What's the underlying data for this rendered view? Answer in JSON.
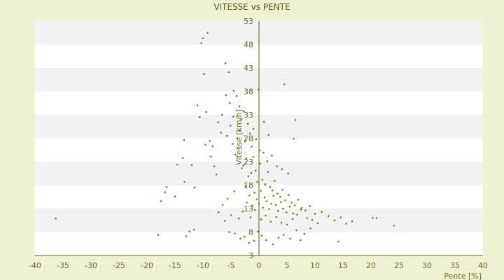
{
  "chart_data": {
    "type": "scatter",
    "title": "VITESSE vs PENTE",
    "xlabel": "Pente [%]",
    "ylabel": "Vitesse [km/h]",
    "xlim": [
      -40,
      40
    ],
    "ylim": [
      3,
      53
    ],
    "x_ticks": [
      -40,
      -35,
      -30,
      -25,
      -20,
      -15,
      -10,
      -5,
      0,
      5,
      10,
      15,
      20,
      25,
      30,
      35,
      40
    ],
    "x_tick_labels": [
      "-40",
      "-35",
      "-30",
      "-25",
      "-20",
      "-15",
      "-10",
      "-5",
      "0",
      "5",
      "10",
      "15",
      "20",
      "25",
      "30",
      "35",
      "40"
    ],
    "y_ticks": [
      3,
      8,
      13,
      18,
      23,
      28,
      33,
      38,
      43,
      48,
      53
    ],
    "y_tick_labels": [
      "3",
      "8",
      "13",
      "18",
      "23",
      "28",
      "33",
      "38",
      "43",
      "48",
      "53"
    ],
    "grid": "alternating horizontal bands",
    "colors": {
      "background": "#eef2d2",
      "plot_band_light": "#ffffff",
      "plot_band_dark": "#f2f2f2",
      "axis": "#5f5f14",
      "marker": "#7a7a10",
      "text": "#6b6b18"
    },
    "series": [
      {
        "values": [
          [
            -36.3,
            10.9
          ],
          [
            -18.0,
            7.4
          ],
          [
            -13.0,
            7.1
          ],
          [
            -12.4,
            8.1
          ],
          [
            -11.6,
            8.5
          ],
          [
            -10.3,
            48.3
          ],
          [
            -10.0,
            49.3
          ],
          [
            -9.2,
            50.5
          ],
          [
            -9.8,
            41.7
          ],
          [
            -9.4,
            33.6
          ],
          [
            -8.8,
            27.4
          ],
          [
            -8.3,
            26.3
          ],
          [
            -17.5,
            14.6
          ],
          [
            -16.8,
            16.5
          ],
          [
            -16.5,
            17.6
          ],
          [
            -15.0,
            15.6
          ],
          [
            -14.6,
            22.4
          ],
          [
            -13.3,
            18.7
          ],
          [
            -13.6,
            23.8
          ],
          [
            -13.4,
            27.6
          ],
          [
            -12.0,
            22.3
          ],
          [
            -11.5,
            17.5
          ],
          [
            -11.0,
            35.0
          ],
          [
            -10.6,
            32.5
          ],
          [
            -9.6,
            26.6
          ],
          [
            -8.6,
            24.1
          ],
          [
            -8.0,
            22.0
          ],
          [
            -7.6,
            20.3
          ],
          [
            -6.0,
            44.0
          ],
          [
            -5.4,
            42.1
          ],
          [
            -5.9,
            37.2
          ],
          [
            -5.2,
            35.5
          ],
          [
            -4.5,
            38.1
          ],
          [
            -4.0,
            37.0
          ],
          [
            -3.5,
            34.8
          ],
          [
            -3.2,
            32.1
          ],
          [
            -2.7,
            33.7
          ],
          [
            -2.0,
            31.1
          ],
          [
            -1.6,
            29.0
          ],
          [
            -1.0,
            30.0
          ],
          [
            -5.3,
            8.0
          ],
          [
            -4.3,
            7.7
          ],
          [
            -3.3,
            6.6
          ],
          [
            -2.6,
            7.0
          ],
          [
            -1.8,
            5.7
          ],
          [
            -0.9,
            6.1
          ],
          [
            -0.2,
            8.1
          ],
          [
            0.5,
            7.2
          ],
          [
            1.3,
            6.3
          ],
          [
            2.5,
            5.4
          ],
          [
            3.5,
            6.8
          ],
          [
            4.4,
            7.4
          ],
          [
            5.6,
            6.6
          ],
          [
            6.7,
            8.4
          ],
          [
            7.4,
            6.3
          ],
          [
            8.1,
            7.6
          ],
          [
            9.2,
            8.8
          ],
          [
            10.5,
            9.9
          ],
          [
            -4.7,
            26.8
          ],
          [
            -4.2,
            24.5
          ],
          [
            -3.8,
            25.9
          ],
          [
            -3.1,
            21.6
          ],
          [
            -2.8,
            22.2
          ],
          [
            -2.3,
            23.7
          ],
          [
            -1.9,
            19.9
          ],
          [
            -1.4,
            20.6
          ],
          [
            -1.0,
            24.0
          ],
          [
            -0.6,
            21.1
          ],
          [
            -0.3,
            18.7
          ],
          [
            0.2,
            22.6
          ],
          [
            0.6,
            19.1
          ],
          [
            1.1,
            18.2
          ],
          [
            1.6,
            20.8
          ],
          [
            2.0,
            17.6
          ],
          [
            2.4,
            16.9
          ],
          [
            2.8,
            18.9
          ],
          [
            3.3,
            16.2
          ],
          [
            3.8,
            15.5
          ],
          [
            4.2,
            17.0
          ],
          [
            4.7,
            14.8
          ],
          [
            5.3,
            15.9
          ],
          [
            5.8,
            14.3
          ],
          [
            6.4,
            13.7
          ],
          [
            7.0,
            14.9
          ],
          [
            7.6,
            13.1
          ],
          [
            8.3,
            12.6
          ],
          [
            9.1,
            13.5
          ],
          [
            10.0,
            11.9
          ],
          [
            11.2,
            12.3
          ],
          [
            12.4,
            11.4
          ],
          [
            13.5,
            10.5
          ],
          [
            14.6,
            11.1
          ],
          [
            15.6,
            9.8
          ],
          [
            16.6,
            10.3
          ],
          [
            20.3,
            11.0
          ],
          [
            21.0,
            11.0
          ],
          [
            24.1,
            9.4
          ],
          [
            14.2,
            6.0
          ],
          [
            -2.2,
            14.3
          ],
          [
            -1.7,
            15.8
          ],
          [
            -1.2,
            13.6
          ],
          [
            -0.8,
            16.4
          ],
          [
            -0.4,
            15.0
          ],
          [
            0.0,
            14.1
          ],
          [
            0.3,
            16.8
          ],
          [
            0.7,
            13.2
          ],
          [
            1.0,
            15.4
          ],
          [
            1.4,
            14.6
          ],
          [
            1.8,
            12.9
          ],
          [
            2.2,
            14.0
          ],
          [
            2.6,
            15.7
          ],
          [
            3.0,
            13.8
          ],
          [
            3.4,
            12.5
          ],
          [
            3.9,
            14.4
          ],
          [
            4.3,
            13.0
          ],
          [
            4.9,
            12.2
          ],
          [
            5.5,
            13.4
          ],
          [
            6.1,
            12.0
          ],
          [
            6.8,
            11.7
          ],
          [
            7.5,
            12.8
          ],
          [
            8.6,
            11.0
          ],
          [
            9.5,
            10.6
          ],
          [
            -7.2,
            12.2
          ],
          [
            -6.5,
            13.8
          ],
          [
            -6.1,
            10.4
          ],
          [
            -5.6,
            15.1
          ],
          [
            -5.0,
            11.6
          ],
          [
            -4.4,
            16.7
          ],
          [
            -3.6,
            10.9
          ],
          [
            -2.9,
            12.4
          ],
          [
            -2.4,
            17.8
          ],
          [
            -1.5,
            11.1
          ],
          [
            -0.7,
            12.7
          ],
          [
            0.4,
            10.7
          ],
          [
            1.2,
            11.5
          ],
          [
            2.1,
            10.2
          ],
          [
            3.1,
            11.2
          ],
          [
            4.0,
            10.0
          ],
          [
            5.0,
            9.6
          ],
          [
            6.0,
            10.8
          ],
          [
            -6.8,
            29.2
          ],
          [
            -7.3,
            31.4
          ],
          [
            -6.6,
            33.0
          ],
          [
            -5.7,
            28.5
          ],
          [
            -5.1,
            30.7
          ],
          [
            -4.6,
            32.6
          ],
          [
            -3.9,
            28.0
          ],
          [
            -3.4,
            29.6
          ],
          [
            -2.5,
            27.3
          ],
          [
            -1.3,
            26.2
          ],
          [
            -0.5,
            27.8
          ],
          [
            0.1,
            25.4
          ],
          [
            0.8,
            24.9
          ],
          [
            1.5,
            23.1
          ],
          [
            2.3,
            24.3
          ],
          [
            3.2,
            22.0
          ],
          [
            4.1,
            21.4
          ],
          [
            5.2,
            20.5
          ],
          [
            6.2,
            27.9
          ],
          [
            6.5,
            31.9
          ],
          [
            4.5,
            39.5
          ],
          [
            0.9,
            31.5
          ],
          [
            1.7,
            28.7
          ],
          [
            -0.1,
            38.4
          ]
        ]
      }
    ]
  }
}
